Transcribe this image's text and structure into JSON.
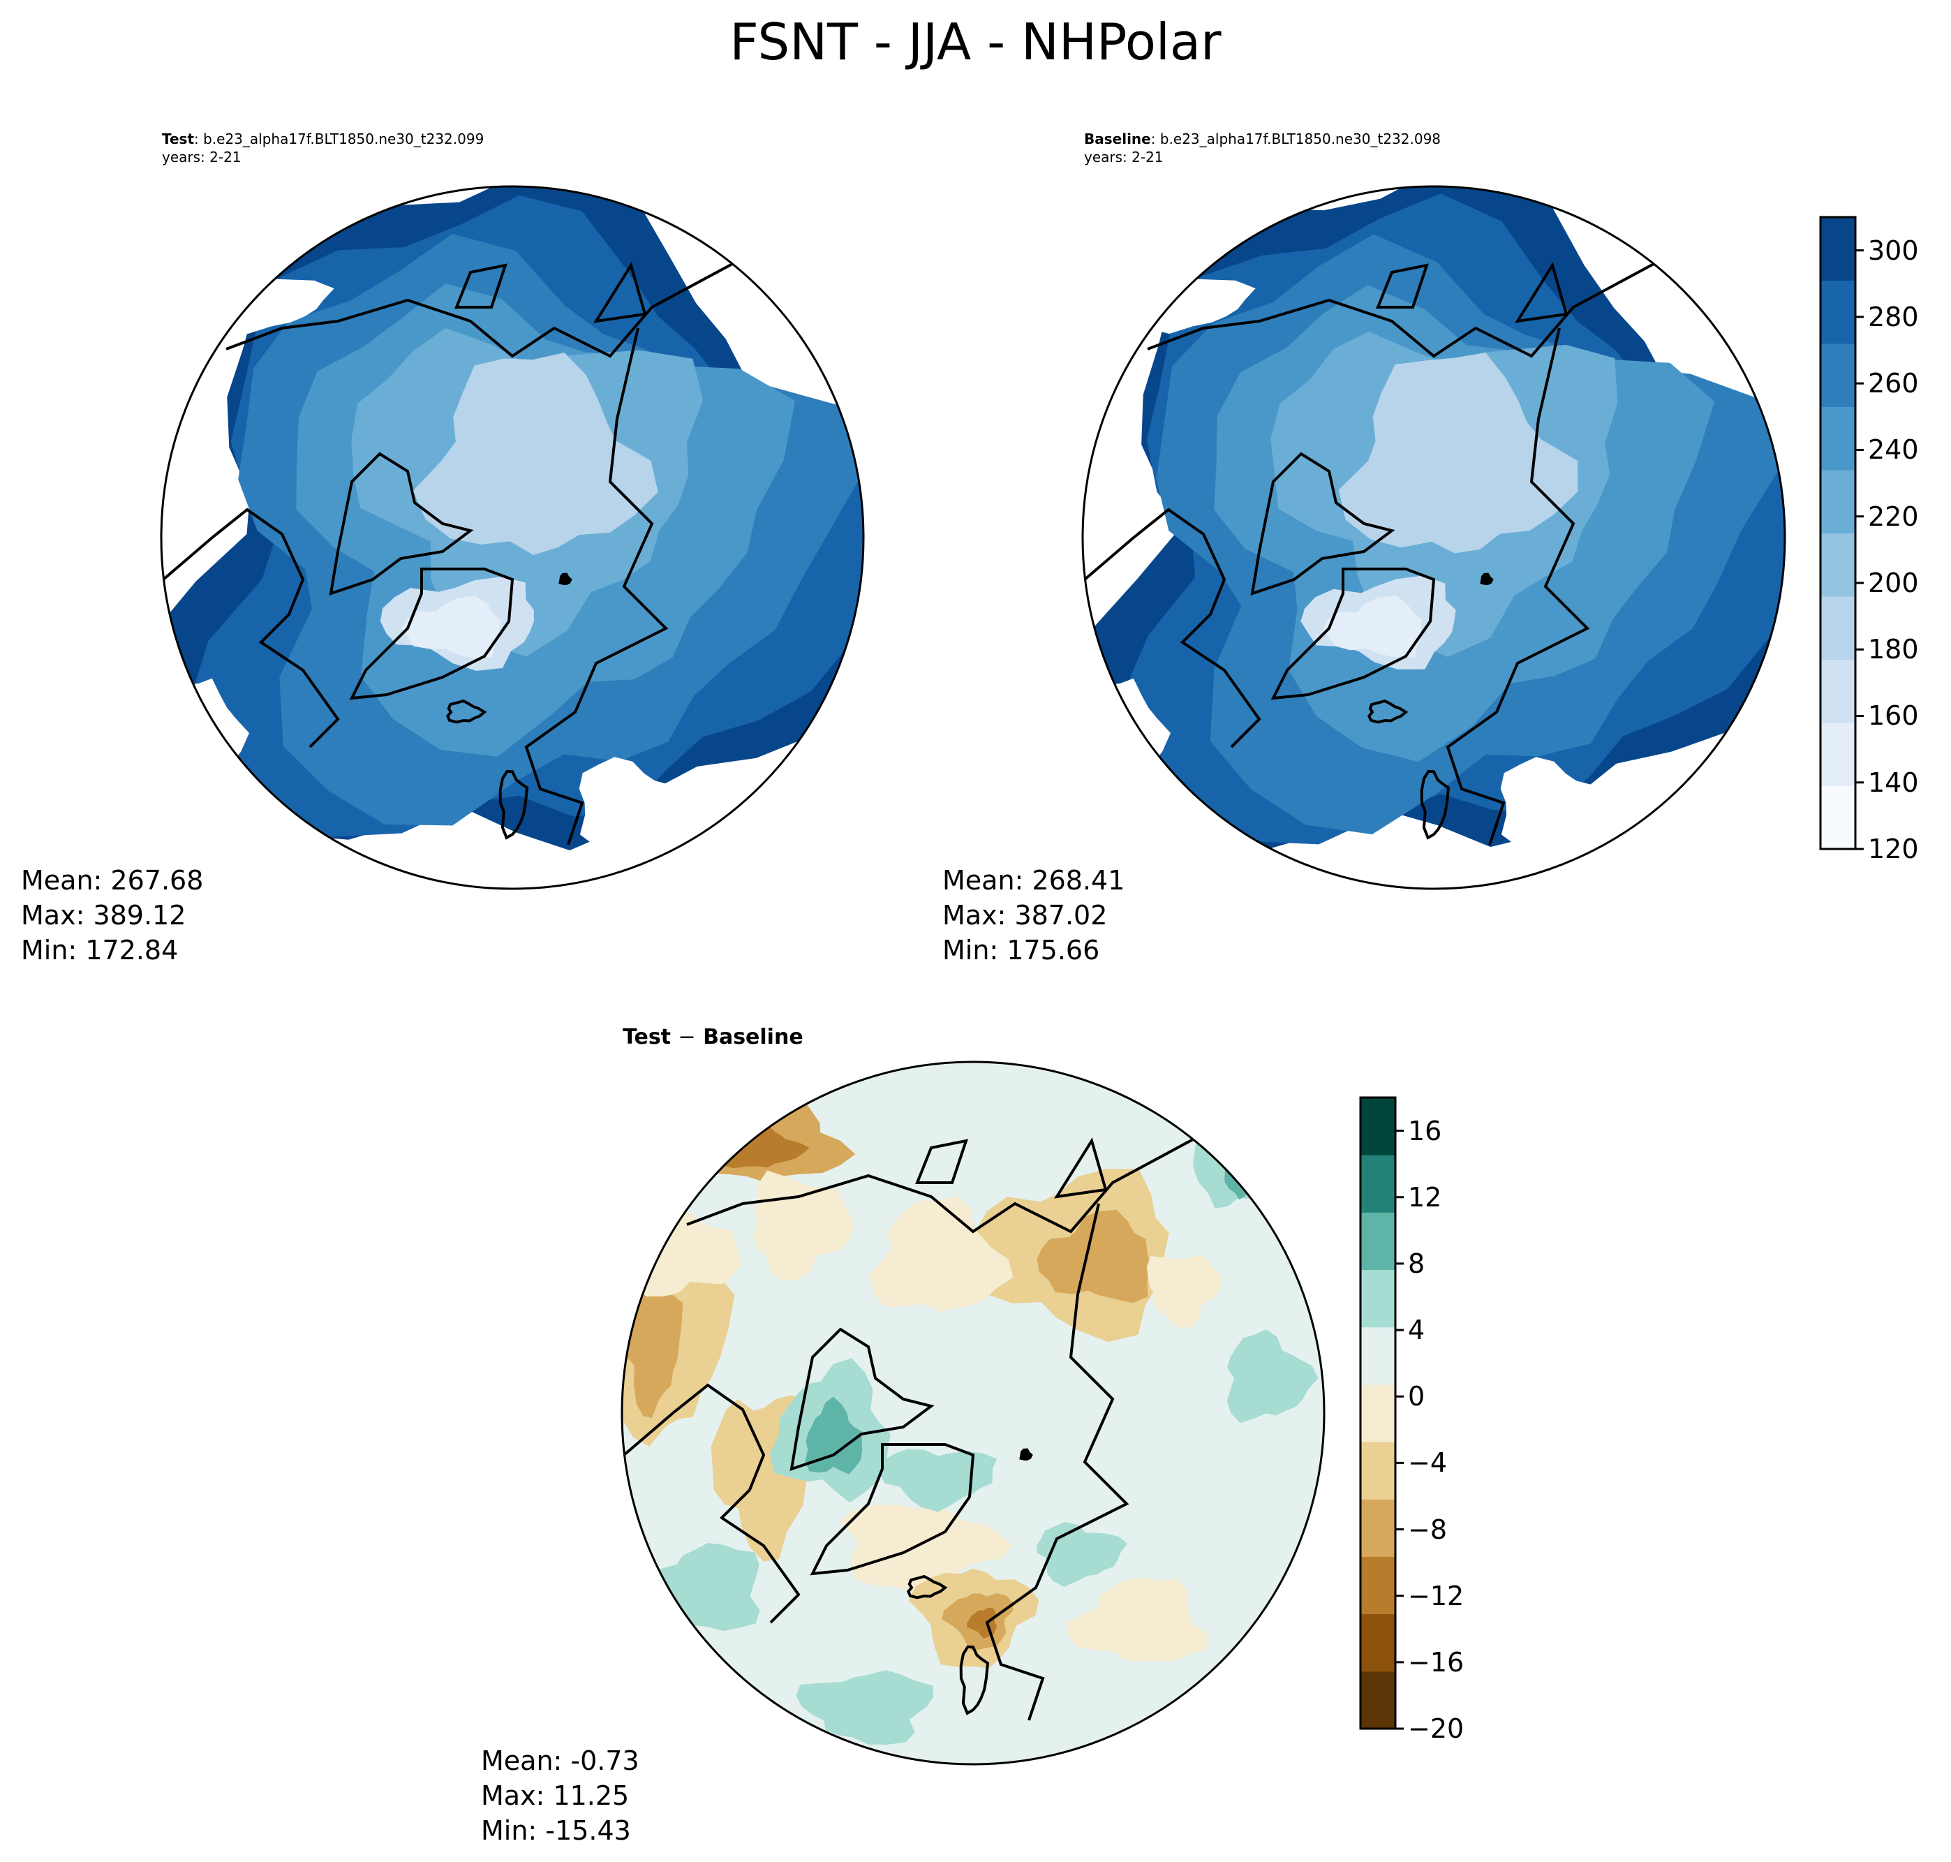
{
  "figure": {
    "title": "FSNT - JJA - NHPolar"
  },
  "panels": {
    "test": {
      "label": "Test",
      "case": ": b.e23_alpha17f.BLT1850.ne30_t232.099",
      "years": "years: 2-21",
      "stats": {
        "mean": "Mean: 267.68",
        "max": "Max: 389.12",
        "min": "Min: 172.84"
      }
    },
    "baseline": {
      "label": "Baseline",
      "case": ": b.e23_alpha17f.BLT1850.ne30_t232.098",
      "years": "years: 2-21",
      "stats": {
        "mean": "Mean: 268.41",
        "max": "Max: 387.02",
        "min": "Min: 175.66"
      }
    },
    "diff": {
      "title_a": "Test",
      "title_sep": "−",
      "title_b": "Baseline",
      "stats": {
        "mean": "Mean: -0.73",
        "max": "Max: 11.25",
        "min": "Min: -15.43"
      }
    }
  },
  "colorbars": {
    "main": {
      "cmap": "Blues",
      "ticks": [
        "120",
        "140",
        "160",
        "180",
        "200",
        "220",
        "240",
        "260",
        "280",
        "300"
      ],
      "range": [
        120,
        310
      ],
      "colors": [
        "#f7fbff",
        "#e3eef9",
        "#d0e1f2",
        "#b7d4ea",
        "#94c4df",
        "#6aaed6",
        "#4a98c9",
        "#2e7ebc",
        "#1764ab",
        "#08468b"
      ]
    },
    "diff": {
      "cmap": "BrBG",
      "ticks": [
        "−20",
        "−16",
        "−12",
        "−8",
        "−4",
        "0",
        "4",
        "8",
        "12",
        "16"
      ],
      "range": [
        -20,
        18
      ],
      "colors": [
        "#5b3506",
        "#8c510a",
        "#b87c2c",
        "#d6a85b",
        "#ead092",
        "#f6ecd2",
        "#e4f1ef",
        "#a6dcd1",
        "#5fb4a8",
        "#238277",
        "#00463d"
      ]
    }
  },
  "map": {
    "projection": "North Polar Stereographic",
    "colors": {
      "coast": "#000000",
      "background": "#ffffff"
    }
  }
}
